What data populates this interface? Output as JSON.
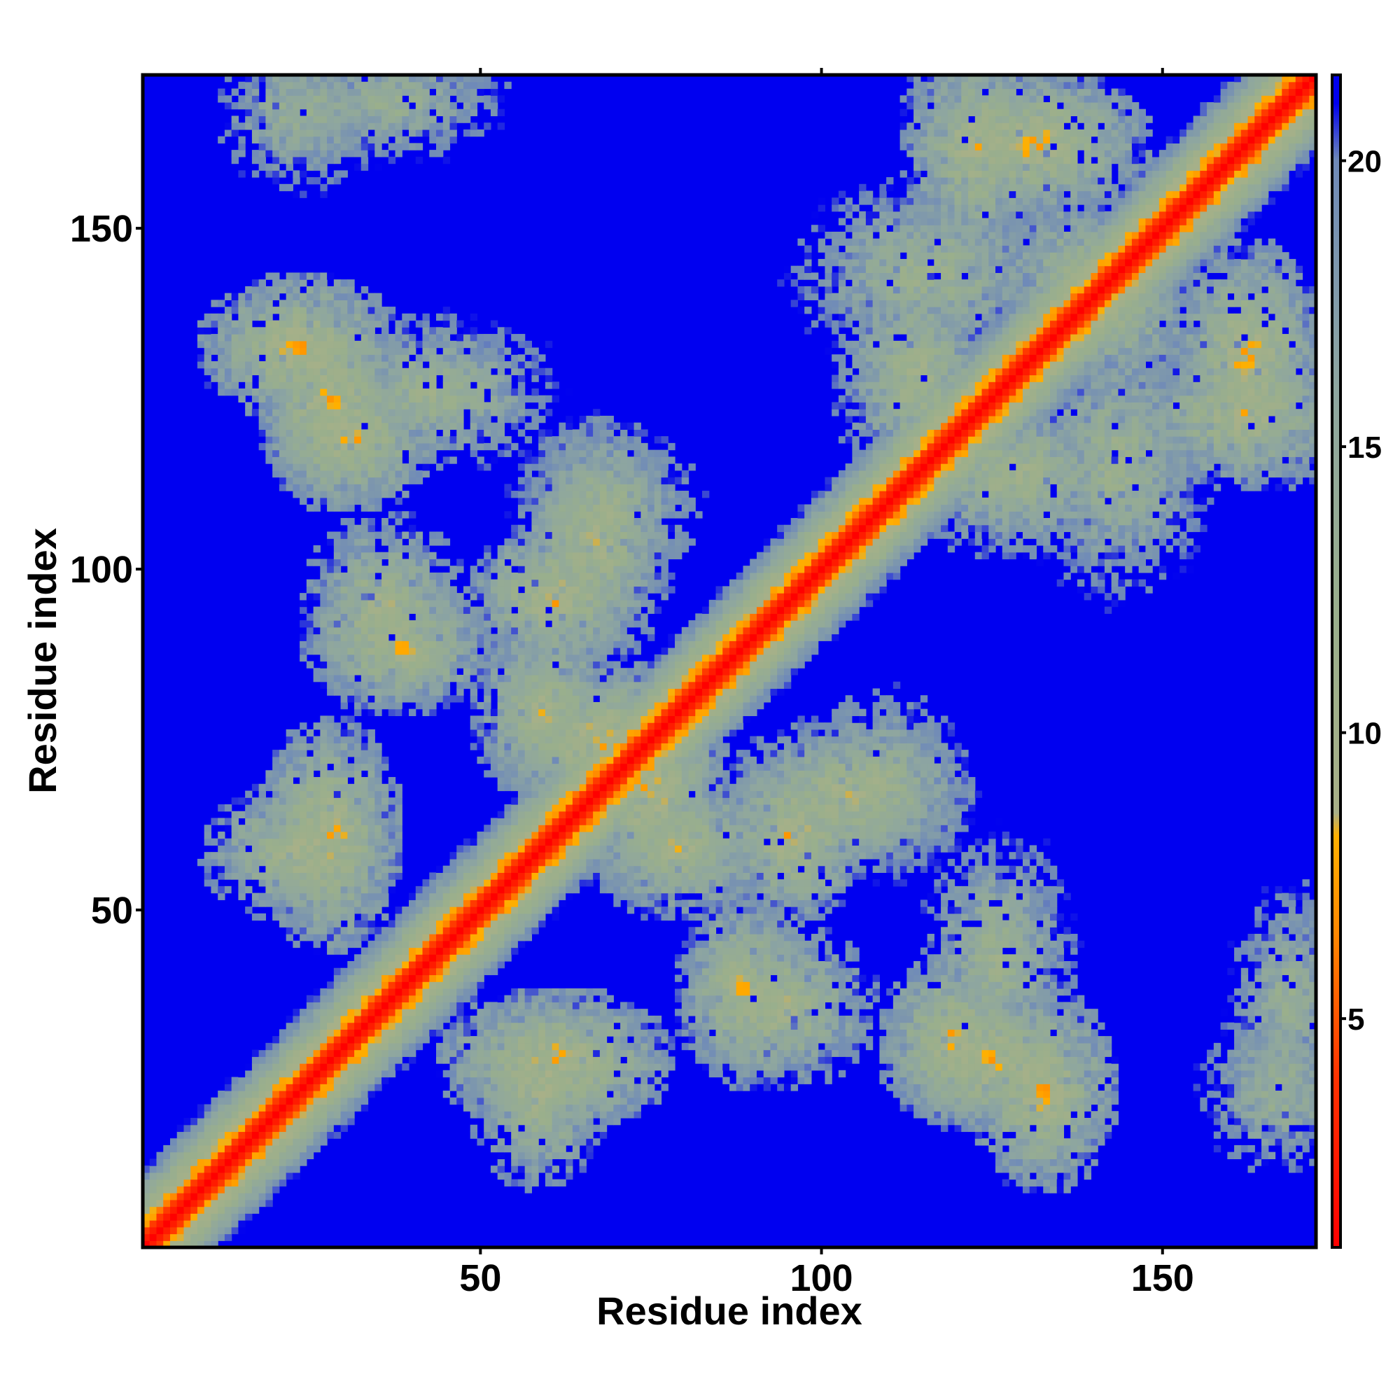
{
  "chart_data": {
    "type": "heatmap",
    "title": "",
    "xlabel": "Residue index",
    "ylabel": "Residue index",
    "n_residues": 172,
    "xlim": [
      1,
      172
    ],
    "ylim": [
      1,
      172
    ],
    "x_ticks": [
      50,
      100,
      150
    ],
    "y_ticks": [
      50,
      100,
      150
    ],
    "colorbar": {
      "range": [
        1,
        21.5
      ],
      "ticks": [
        5,
        10,
        15,
        20
      ],
      "stops": [
        {
          "value": 1,
          "color": "#ff0000"
        },
        {
          "value": 4,
          "color": "#ff3300"
        },
        {
          "value": 6.5,
          "color": "#ff8800"
        },
        {
          "value": 8.2,
          "color": "#ffb000"
        },
        {
          "value": 8.6,
          "color": "#a8b088"
        },
        {
          "value": 12,
          "color": "#9aaf8c"
        },
        {
          "value": 16,
          "color": "#8ea6a0"
        },
        {
          "value": 20,
          "color": "#6f8ab8"
        },
        {
          "value": 21,
          "color": "#0000f0"
        }
      ]
    },
    "background_value_color": "#0000f0",
    "contacts": [
      {
        "x": [
          15,
          30
        ],
        "y": [
          135,
          128
        ],
        "level": 6
      },
      {
        "x": [
          25,
          35
        ],
        "y": [
          122,
          115
        ],
        "level": 6
      },
      {
        "x": [
          30,
          55
        ],
        "y": [
          130,
          120
        ],
        "level": 9
      },
      {
        "x": [
          15,
          30
        ],
        "y": [
          60,
          55
        ],
        "level": 7
      },
      {
        "x": [
          30,
          45
        ],
        "y": [
          90,
          85
        ],
        "level": 7
      },
      {
        "x": [
          55,
          65
        ],
        "y": [
          98,
          92
        ],
        "level": 6
      },
      {
        "x": [
          58,
          75
        ],
        "y": [
          78,
          70
        ],
        "level": 6
      },
      {
        "x": [
          72,
          85
        ],
        "y": [
          62,
          55
        ],
        "level": 7
      },
      {
        "x": [
          85,
          100
        ],
        "y": [
          40,
          30
        ],
        "level": 7
      },
      {
        "x": [
          50,
          70
        ],
        "y": [
          30,
          24
        ],
        "level": 6
      },
      {
        "x": [
          115,
          132
        ],
        "y": [
          30,
          24
        ],
        "level": 6
      },
      {
        "x": [
          120,
          140
        ],
        "y": [
          165,
          158
        ],
        "level": 6
      },
      {
        "x": [
          130,
          150
        ],
        "y": [
          140,
          132
        ],
        "level": 8
      },
      {
        "x": [
          150,
          172
        ],
        "y": [
          125,
          118
        ],
        "level": 7
      },
      {
        "x": [
          115,
          140
        ],
        "y": [
          118,
          108
        ],
        "level": 8
      },
      {
        "x": [
          92,
          115
        ],
        "y": [
          70,
          62
        ],
        "level": 7
      },
      {
        "x": [
          60,
          75
        ],
        "y": [
          115,
          100
        ],
        "level": 9
      },
      {
        "x": [
          100,
          130
        ],
        "y": [
          150,
          135
        ],
        "level": 9
      },
      {
        "x": [
          20,
          50
        ],
        "y": [
          170,
          165
        ],
        "level": 10
      },
      {
        "x": [
          160,
          172
        ],
        "y": [
          30,
          15
        ],
        "level": 10
      }
    ]
  }
}
